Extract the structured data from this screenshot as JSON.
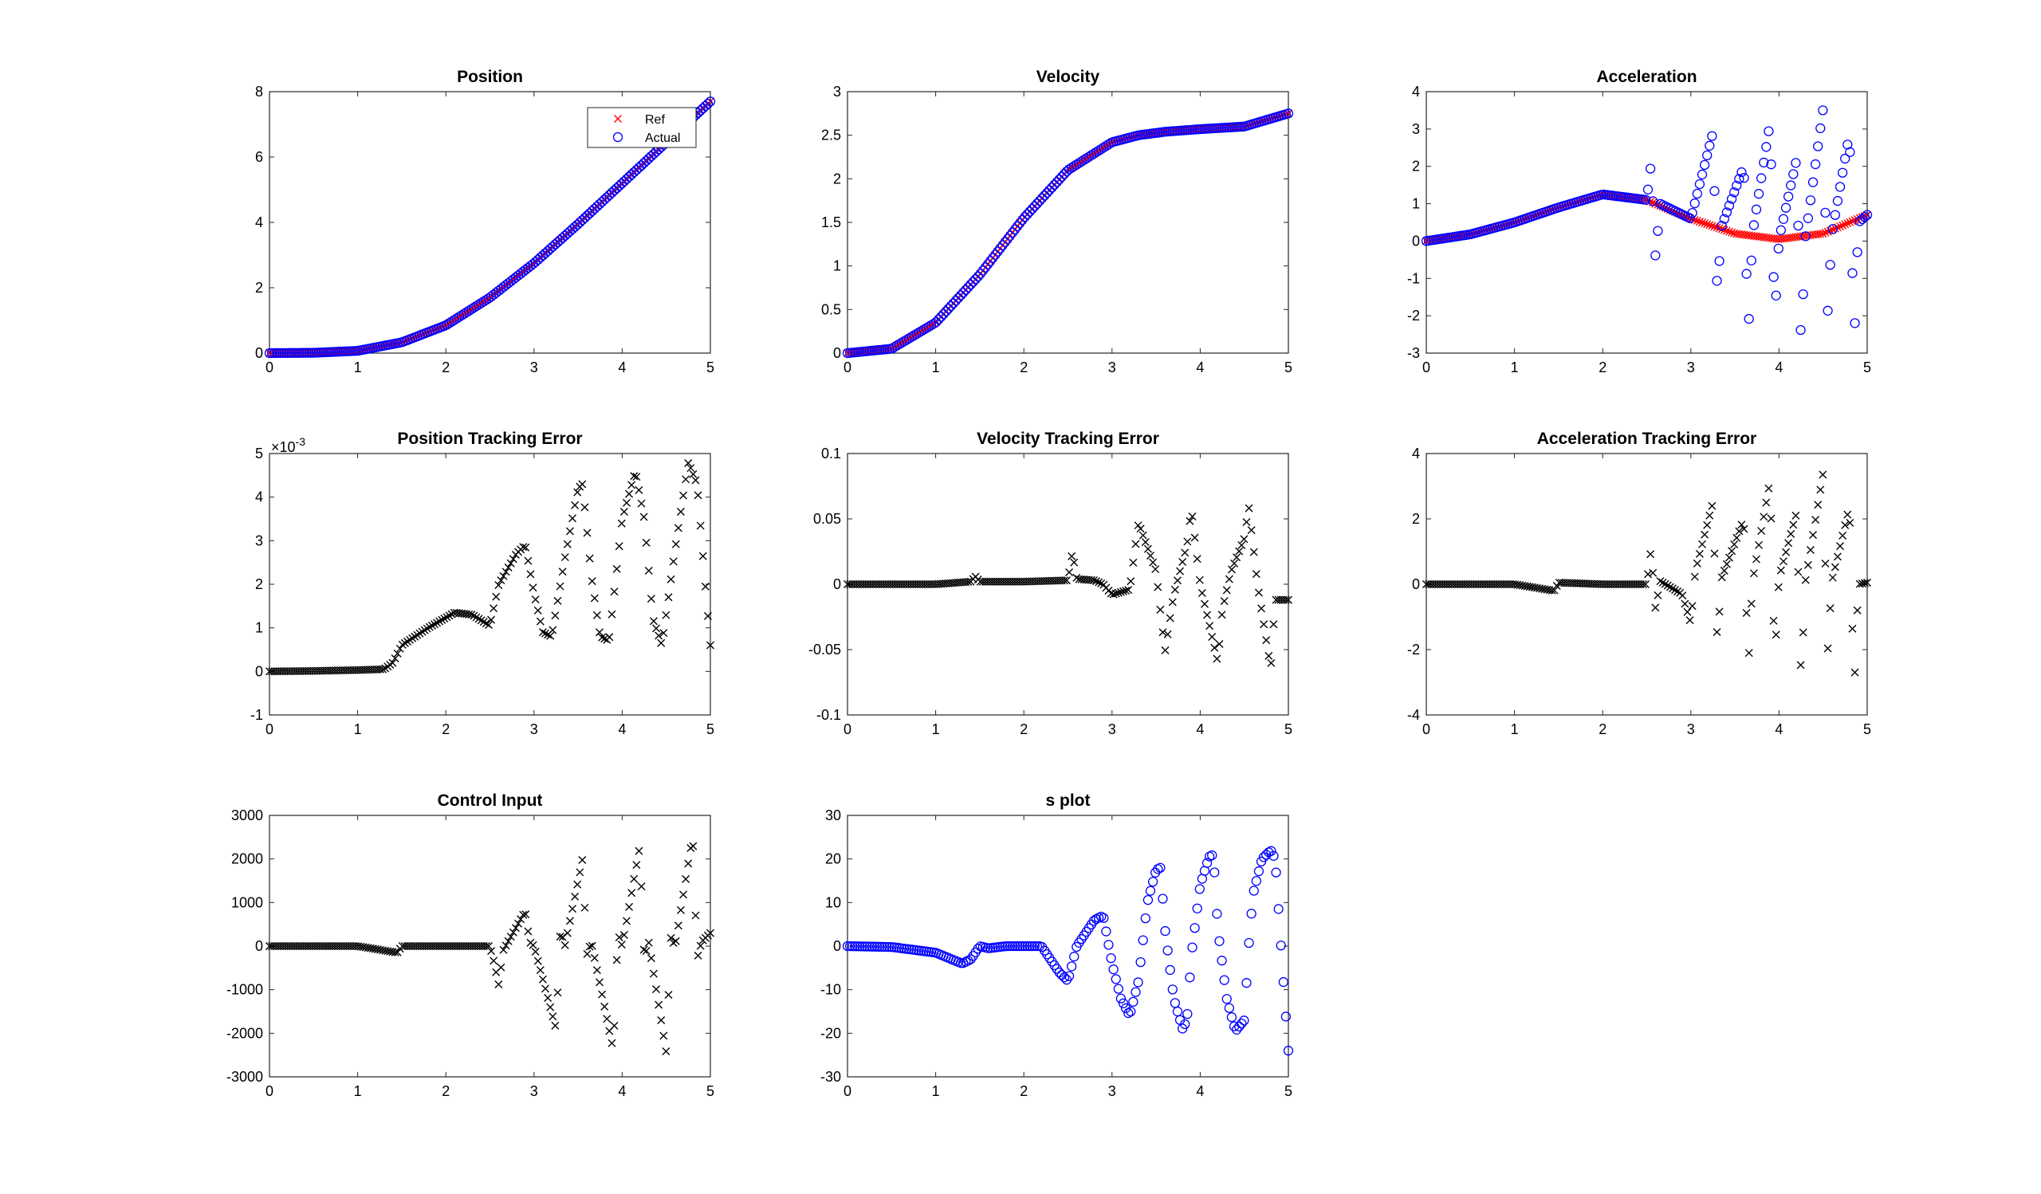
{
  "chart_data": [
    {
      "id": "position",
      "type": "scatter",
      "title": "Position",
      "xlim": [
        0,
        5
      ],
      "ylim": [
        0,
        8
      ],
      "xticks": [
        0,
        1,
        2,
        3,
        4,
        5
      ],
      "yticks": [
        0,
        2,
        4,
        6,
        8
      ],
      "legend": {
        "placement": "top-right",
        "entries": [
          {
            "label": "Ref",
            "marker": "x",
            "color": "#ff0000"
          },
          {
            "label": "Actual",
            "marker": "o",
            "color": "#0000ff"
          }
        ]
      },
      "series": [
        {
          "name": "Ref",
          "marker": "x",
          "color": "#ff0000",
          "x": [
            0,
            0.5,
            1,
            1.5,
            2,
            2.5,
            3,
            3.5,
            4,
            4.5,
            5
          ],
          "y": [
            0,
            0.01,
            0.07,
            0.33,
            0.85,
            1.7,
            2.75,
            3.95,
            5.2,
            6.45,
            7.7
          ]
        },
        {
          "name": "Actual",
          "marker": "o",
          "color": "#0000ff",
          "x": [
            0,
            0.5,
            1,
            1.5,
            2,
            2.5,
            3,
            3.5,
            4,
            4.5,
            5
          ],
          "y": [
            0,
            0.01,
            0.07,
            0.33,
            0.85,
            1.7,
            2.75,
            3.95,
            5.2,
            6.45,
            7.7
          ]
        }
      ]
    },
    {
      "id": "velocity",
      "type": "scatter",
      "title": "Velocity",
      "xlim": [
        0,
        5
      ],
      "ylim": [
        0,
        3
      ],
      "xticks": [
        0,
        1,
        2,
        3,
        4,
        5
      ],
      "yticks": [
        0,
        0.5,
        1,
        1.5,
        2,
        2.5,
        3
      ],
      "series": [
        {
          "marker": "x",
          "color": "#ff0000",
          "x": [
            0,
            0.5,
            1,
            1.5,
            2,
            2.5,
            3,
            3.3,
            3.6,
            4,
            4.5,
            5
          ],
          "y": [
            0,
            0.05,
            0.35,
            0.9,
            1.55,
            2.1,
            2.42,
            2.5,
            2.54,
            2.57,
            2.6,
            2.75
          ]
        },
        {
          "marker": "o",
          "color": "#0000ff",
          "x": [
            0,
            0.5,
            1,
            1.5,
            2,
            2.5,
            3,
            3.3,
            3.6,
            4,
            4.5,
            5
          ],
          "y": [
            0,
            0.05,
            0.35,
            0.9,
            1.55,
            2.1,
            2.42,
            2.5,
            2.54,
            2.57,
            2.6,
            2.75
          ]
        }
      ]
    },
    {
      "id": "acceleration",
      "type": "scatter",
      "title": "Acceleration",
      "xlim": [
        0,
        5
      ],
      "ylim": [
        -3,
        4
      ],
      "xticks": [
        0,
        1,
        2,
        3,
        4,
        5
      ],
      "yticks": [
        -3,
        -2,
        -1,
        0,
        1,
        2,
        3,
        4
      ],
      "series": [
        {
          "marker": "x",
          "color": "#ff0000",
          "x": [
            0,
            0.5,
            1,
            1.5,
            2,
            2.5,
            3,
            3.5,
            4,
            4.5,
            5
          ],
          "y": [
            0,
            0.18,
            0.5,
            0.9,
            1.25,
            1.1,
            0.6,
            0.2,
            0.05,
            0.2,
            0.7
          ]
        },
        {
          "marker": "o",
          "color": "#0000ff",
          "x": [
            0,
            0.5,
            1,
            1.5,
            2,
            2.5,
            2.55,
            2.6,
            2.65,
            3,
            3.25,
            3.3,
            3.35,
            3.6,
            3.65,
            3.7,
            3.9,
            3.95,
            4.0,
            4.2,
            4.25,
            4.3,
            4.5,
            4.55,
            4.6,
            4.8,
            4.85,
            4.9,
            5
          ],
          "y": [
            0,
            0.18,
            0.5,
            0.9,
            1.25,
            1.1,
            2.1,
            -0.5,
            1.0,
            0.6,
            2.9,
            -1.4,
            0.4,
            2.0,
            -2.6,
            0.2,
            3.2,
            -2.2,
            0.05,
            2.2,
            -2.8,
            0.1,
            3.55,
            -2.0,
            0.2,
            2.9,
            -2.9,
            0.5,
            0.7
          ]
        }
      ]
    },
    {
      "id": "position-error",
      "type": "scatter",
      "title": "Position Tracking Error",
      "xlim": [
        0,
        5
      ],
      "ylim": [
        -1,
        5
      ],
      "exponent_label": "×10",
      "exponent_power": "-3",
      "xticks": [
        0,
        1,
        2,
        3,
        4,
        5
      ],
      "yticks": [
        -1,
        0,
        1,
        2,
        3,
        4,
        5
      ],
      "series": [
        {
          "marker": "x",
          "color": "#000000",
          "x": [
            0,
            0.5,
            1,
            1.3,
            1.4,
            1.5,
            1.8,
            2.1,
            2.3,
            2.5,
            2.6,
            2.8,
            2.9,
            3.0,
            3.1,
            3.2,
            3.35,
            3.5,
            3.55,
            3.65,
            3.75,
            3.85,
            4.0,
            4.15,
            4.25,
            4.35,
            4.45,
            4.6,
            4.75,
            4.85,
            4.95,
            5.0
          ],
          "y": [
            0,
            0.01,
            0.03,
            0.05,
            0.2,
            0.6,
            1.0,
            1.35,
            1.3,
            1.05,
            2.0,
            2.7,
            2.9,
            1.8,
            0.9,
            0.8,
            2.6,
            4.2,
            4.3,
            2.2,
            0.8,
            0.7,
            3.5,
            4.6,
            3.5,
            1.2,
            0.6,
            2.8,
            4.8,
            4.3,
            1.8,
            0.6
          ]
        }
      ]
    },
    {
      "id": "velocity-error",
      "type": "scatter",
      "title": "Velocity Tracking Error",
      "xlim": [
        0,
        5
      ],
      "ylim": [
        -0.1,
        0.1
      ],
      "xticks": [
        0,
        1,
        2,
        3,
        4,
        5
      ],
      "yticks": [
        -0.1,
        -0.05,
        0,
        0.05,
        0.1
      ],
      "series": [
        {
          "marker": "x",
          "color": "#000000",
          "x": [
            0,
            0.5,
            1,
            1.4,
            1.45,
            1.5,
            2.0,
            2.5,
            2.55,
            2.6,
            2.8,
            2.9,
            3.0,
            3.2,
            3.3,
            3.5,
            3.6,
            3.7,
            3.85,
            3.9,
            4.0,
            4.2,
            4.25,
            4.35,
            4.5,
            4.55,
            4.65,
            4.8,
            4.85,
            5.0
          ],
          "y": [
            0,
            0,
            0,
            0.002,
            0.006,
            0.002,
            0.002,
            0.003,
            0.025,
            0.004,
            0.003,
            0.0,
            -0.008,
            -0.004,
            0.047,
            0.01,
            -0.052,
            -0.008,
            0.03,
            0.058,
            0.0,
            -0.06,
            -0.02,
            0.01,
            0.035,
            0.06,
            0.0,
            -0.065,
            -0.012,
            -0.012
          ]
        }
      ]
    },
    {
      "id": "acceleration-error",
      "type": "scatter",
      "title": "Acceleration Tracking Error",
      "xlim": [
        0,
        5
      ],
      "ylim": [
        -4,
        4
      ],
      "xticks": [
        0,
        1,
        2,
        3,
        4,
        5
      ],
      "yticks": [
        -4,
        -2,
        0,
        2,
        4
      ],
      "series": [
        {
          "marker": "x",
          "color": "#000000",
          "x": [
            0,
            0.5,
            1,
            1.45,
            1.5,
            2.0,
            2.5,
            2.55,
            2.6,
            2.65,
            2.9,
            3.0,
            3.05,
            3.25,
            3.3,
            3.35,
            3.6,
            3.65,
            3.7,
            3.9,
            3.95,
            4.0,
            4.2,
            4.25,
            4.3,
            4.5,
            4.55,
            4.6,
            4.8,
            4.85,
            4.9,
            5.0
          ],
          "y": [
            0,
            0,
            0,
            -0.2,
            0.05,
            0,
            0,
            1.1,
            -0.8,
            0.1,
            -0.3,
            -1.2,
            0.4,
            2.5,
            -1.8,
            0.2,
            2.0,
            -2.6,
            0.1,
            3.2,
            -2.4,
            0.2,
            2.2,
            -2.9,
            0.1,
            3.4,
            -2.1,
            0.1,
            2.4,
            -3.4,
            0.0,
            0.05
          ]
        }
      ]
    },
    {
      "id": "control-input",
      "type": "scatter",
      "title": "Control Input",
      "xlim": [
        0,
        5
      ],
      "ylim": [
        -3000,
        3000
      ],
      "xticks": [
        0,
        1,
        2,
        3,
        4,
        5
      ],
      "yticks": [
        -3000,
        -2000,
        -1000,
        0,
        1000,
        2000,
        3000
      ],
      "series": [
        {
          "marker": "x",
          "color": "#000000",
          "x": [
            0,
            0.5,
            1,
            1.45,
            1.5,
            2.0,
            2.5,
            2.55,
            2.6,
            2.65,
            2.9,
            2.95,
            3.0,
            3.25,
            3.3,
            3.35,
            3.55,
            3.6,
            3.65,
            3.9,
            3.95,
            4.0,
            4.2,
            4.25,
            4.3,
            4.5,
            4.55,
            4.6,
            4.8,
            4.85,
            4.9,
            5.0
          ],
          "y": [
            0,
            0,
            0,
            -150,
            0,
            0,
            0,
            -400,
            -900,
            -100,
            800,
            100,
            0,
            -1900,
            400,
            0,
            2000,
            -200,
            100,
            -2400,
            300,
            0,
            2300,
            -300,
            100,
            -2450,
            200,
            0,
            2550,
            -300,
            100,
            300
          ]
        }
      ]
    },
    {
      "id": "s-plot",
      "type": "scatter",
      "title": "s plot",
      "xlim": [
        0,
        5
      ],
      "ylim": [
        -30,
        30
      ],
      "xticks": [
        0,
        1,
        2,
        3,
        4,
        5
      ],
      "yticks": [
        -30,
        -20,
        -10,
        0,
        10,
        20,
        30
      ],
      "series": [
        {
          "marker": "o",
          "color": "#0000ff",
          "x": [
            0,
            0.5,
            1,
            1.3,
            1.4,
            1.5,
            1.6,
            1.8,
            2.0,
            2.2,
            2.4,
            2.5,
            2.6,
            2.8,
            2.9,
            3.0,
            3.1,
            3.2,
            3.3,
            3.4,
            3.5,
            3.55,
            3.6,
            3.7,
            3.8,
            3.85,
            3.9,
            4.0,
            4.1,
            4.15,
            4.2,
            4.3,
            4.4,
            4.5,
            4.55,
            4.6,
            4.7,
            4.8,
            4.85,
            4.95,
            5.0
          ],
          "y": [
            0,
            -0.2,
            -1.5,
            -4.0,
            -3.0,
            0.0,
            -0.5,
            0.0,
            0.0,
            0.0,
            -6.0,
            -8.0,
            0.0,
            6.0,
            7.0,
            -4.0,
            -12.0,
            -16.0,
            -8.0,
            10.0,
            17.5,
            18.0,
            4.0,
            -12.0,
            -19.0,
            -17.0,
            -2.0,
            14.0,
            20.5,
            21.0,
            4.0,
            -12.0,
            -19.5,
            -17.0,
            0.0,
            12.0,
            20.0,
            22.0,
            20.0,
            -10.0,
            -24.0
          ]
        }
      ]
    }
  ]
}
